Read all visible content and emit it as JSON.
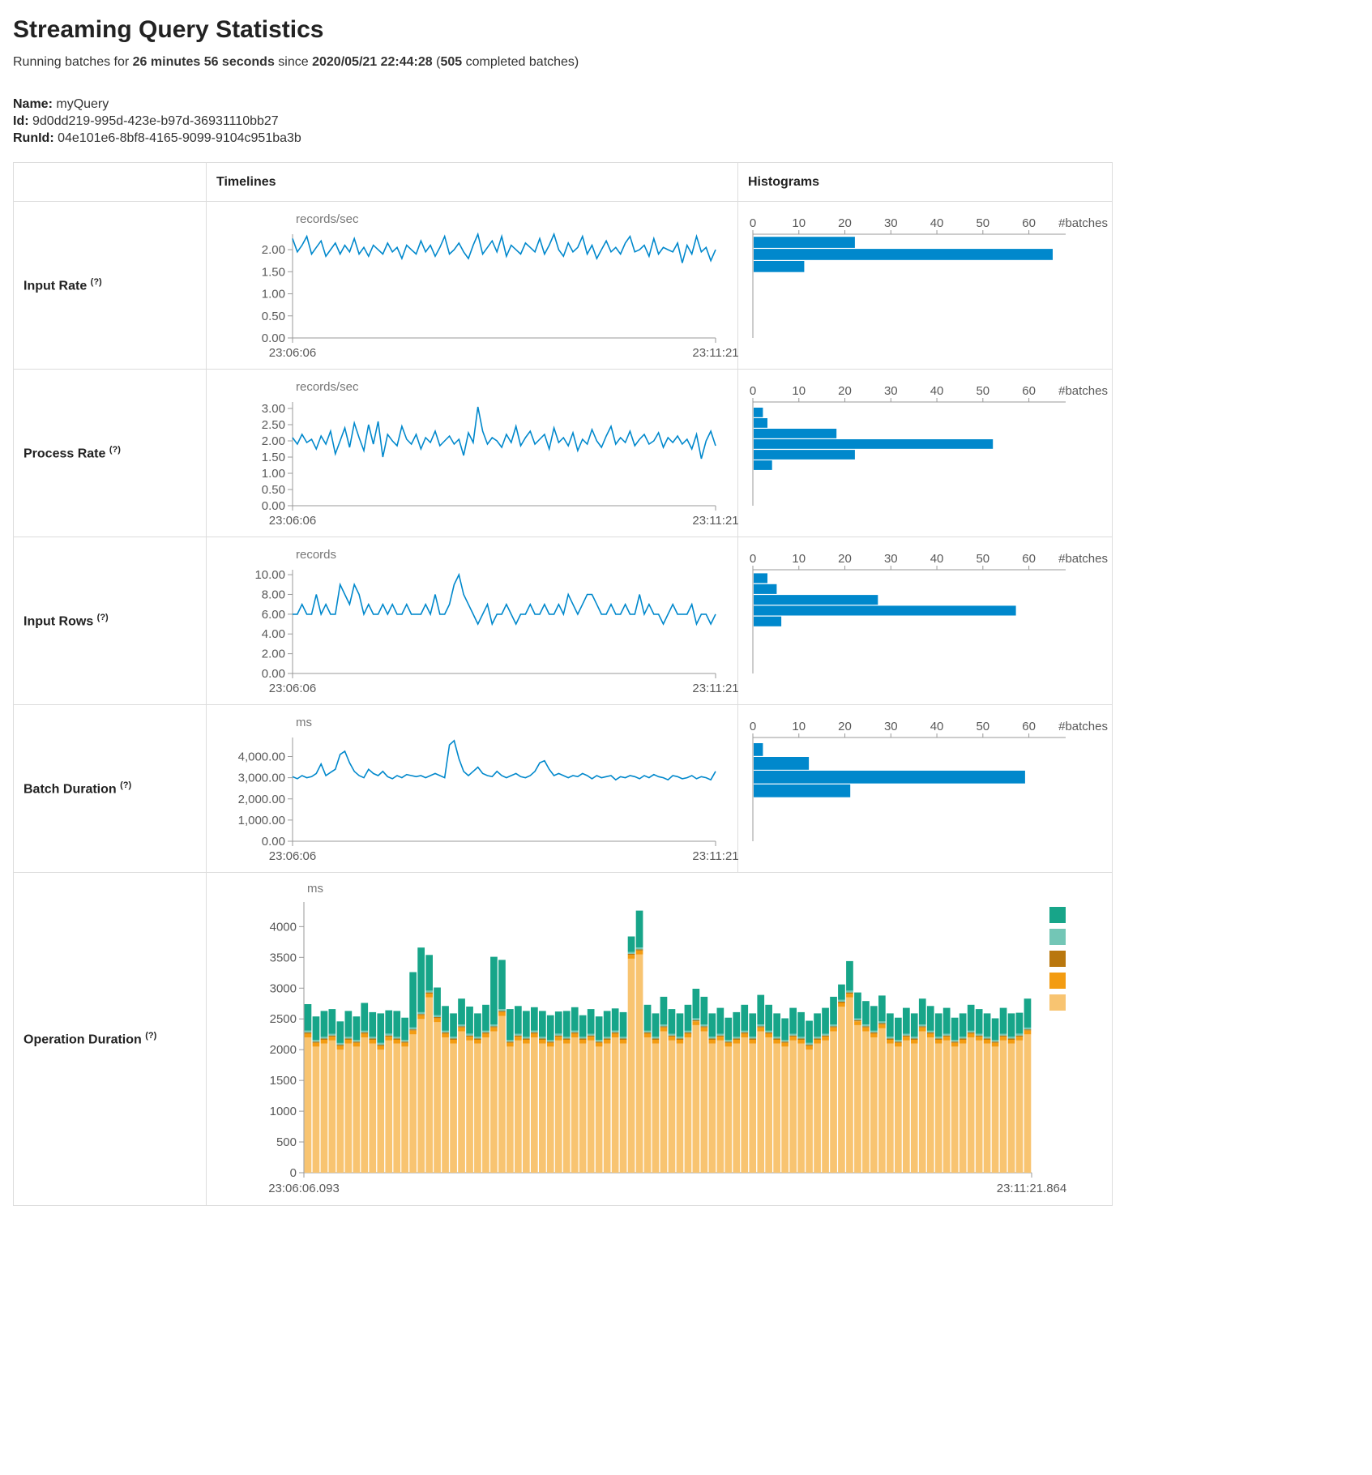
{
  "header": {
    "title": "Streaming Query Statistics",
    "running_prefix": "Running batches for",
    "duration": "26 minutes 56 seconds",
    "since_word": "since",
    "start_time": "2020/05/21 22:44:28",
    "paren_open": "(",
    "batch_count": "505",
    "completed_suffix": "completed batches)"
  },
  "meta": {
    "name_label": "Name:",
    "name_value": "myQuery",
    "id_label": "Id:",
    "id_value": "9d0dd219-995d-423e-b97d-36931110bb27",
    "runid_label": "RunId:",
    "runid_value": "04e101e6-8bf8-4165-9099-9104c951ba3b"
  },
  "table": {
    "col_timelines": "Timelines",
    "col_histograms": "Histograms",
    "rows": [
      {
        "label": "Input Rate",
        "help": "(?)"
      },
      {
        "label": "Process Rate",
        "help": "(?)"
      },
      {
        "label": "Input Rows",
        "help": "(?)"
      },
      {
        "label": "Batch Duration",
        "help": "(?)"
      },
      {
        "label": "Operation Duration",
        "help": "(?)"
      }
    ]
  },
  "palette": {
    "line": "#0088cc",
    "hist": "#0088cc",
    "axis": "#999999",
    "tick_text": "#595959",
    "unit_text": "#777777"
  },
  "chart_data": [
    {
      "id": "input-rate",
      "type": "line",
      "title": "Input Rate",
      "unit": "records/sec",
      "x_start": "23:06:06",
      "x_end": "23:11:21",
      "ylim": [
        0,
        2.35
      ],
      "yticks": [
        0,
        0.5,
        1,
        1.5,
        2
      ],
      "ytick_labels": [
        "0.00",
        "0.50",
        "1.00",
        "1.50",
        "2.00"
      ],
      "values": [
        2.25,
        1.95,
        2.1,
        2.3,
        1.9,
        2.05,
        2.2,
        1.85,
        2.0,
        2.15,
        1.9,
        2.1,
        1.95,
        2.25,
        1.9,
        2.05,
        1.85,
        2.1,
        2.0,
        1.9,
        2.15,
        1.95,
        2.05,
        1.8,
        2.1,
        2.0,
        1.9,
        2.2,
        1.95,
        2.1,
        1.85,
        2.05,
        2.3,
        1.9,
        2.0,
        2.15,
        1.95,
        1.8,
        2.1,
        2.35,
        1.9,
        2.05,
        2.2,
        1.95,
        2.3,
        1.85,
        2.1,
        2.0,
        1.9,
        2.15,
        2.05,
        1.95,
        2.25,
        1.9,
        2.1,
        2.35,
        2.0,
        1.85,
        2.15,
        1.95,
        2.05,
        2.3,
        1.9,
        2.1,
        1.8,
        2.0,
        2.2,
        1.95,
        2.05,
        1.9,
        2.15,
        2.3,
        1.95,
        2.0,
        2.1,
        1.85,
        2.25,
        1.9,
        2.05,
        2.0,
        1.95,
        2.15,
        1.7,
        2.1,
        1.9,
        2.3,
        1.95,
        2.05,
        1.75,
        2.0
      ],
      "histogram": {
        "xlabel": "#batches",
        "xticks": [
          0,
          10,
          20,
          30,
          40,
          50,
          60
        ],
        "xtick_labels": [
          "0",
          "10",
          "20",
          "30",
          "40",
          "50",
          "60"
        ],
        "xlim": [
          0,
          68
        ],
        "counts": [
          22,
          65,
          11
        ],
        "band": [
          0.02,
          0.37
        ]
      }
    },
    {
      "id": "process-rate",
      "type": "line",
      "title": "Process Rate",
      "unit": "records/sec",
      "x_start": "23:06:06",
      "x_end": "23:11:21",
      "ylim": [
        0,
        3.2
      ],
      "yticks": [
        0,
        0.5,
        1,
        1.5,
        2,
        2.5,
        3
      ],
      "ytick_labels": [
        "0.00",
        "0.50",
        "1.00",
        "1.50",
        "2.00",
        "2.50",
        "3.00"
      ],
      "values": [
        2.1,
        1.9,
        2.2,
        1.95,
        2.05,
        1.75,
        2.15,
        1.9,
        2.3,
        1.6,
        2.0,
        2.4,
        1.8,
        2.55,
        2.1,
        1.7,
        2.5,
        1.9,
        2.6,
        1.5,
        2.2,
        2.0,
        1.85,
        2.45,
        2.05,
        1.9,
        2.2,
        1.75,
        2.1,
        1.95,
        2.3,
        1.85,
        2.0,
        2.15,
        1.9,
        2.05,
        1.55,
        2.25,
        1.95,
        3.05,
        2.3,
        1.9,
        2.1,
        2.0,
        1.8,
        2.2,
        1.95,
        2.45,
        1.85,
        2.1,
        2.3,
        1.9,
        2.05,
        2.2,
        1.75,
        2.4,
        1.95,
        2.1,
        1.85,
        2.25,
        1.7,
        2.05,
        1.9,
        2.35,
        2.0,
        1.8,
        2.15,
        2.45,
        1.9,
        2.1,
        1.95,
        2.3,
        1.85,
        2.05,
        2.2,
        1.9,
        2.0,
        2.25,
        1.8,
        2.1,
        1.95,
        2.15,
        1.9,
        2.05,
        1.75,
        2.2,
        1.45,
        2.0,
        2.3,
        1.85
      ],
      "histogram": {
        "xlabel": "#batches",
        "xticks": [
          0,
          10,
          20,
          30,
          40,
          50,
          60
        ],
        "xtick_labels": [
          "0",
          "10",
          "20",
          "30",
          "40",
          "50",
          "60"
        ],
        "xlim": [
          0,
          68
        ],
        "counts": [
          2,
          3,
          18,
          52,
          22,
          4
        ],
        "band": [
          0.05,
          0.66
        ]
      }
    },
    {
      "id": "input-rows",
      "type": "line",
      "title": "Input Rows",
      "unit": "records",
      "x_start": "23:06:06",
      "x_end": "23:11:21",
      "ylim": [
        0,
        10.5
      ],
      "yticks": [
        0,
        2,
        4,
        6,
        8,
        10
      ],
      "ytick_labels": [
        "0.00",
        "2.00",
        "4.00",
        "6.00",
        "8.00",
        "10.00"
      ],
      "values": [
        6,
        6,
        7,
        6,
        6,
        8,
        6,
        7,
        6,
        6,
        9,
        8,
        7,
        9,
        8,
        6,
        7,
        6,
        6,
        7,
        6,
        7,
        6,
        6,
        7,
        6,
        6,
        6,
        7,
        6,
        8,
        6,
        6,
        7,
        9,
        10,
        8,
        7,
        6,
        5,
        6,
        7,
        5,
        6,
        6,
        7,
        6,
        5,
        6,
        6,
        7,
        6,
        6,
        7,
        6,
        6,
        7,
        6,
        8,
        7,
        6,
        7,
        8,
        8,
        7,
        6,
        6,
        7,
        6,
        6,
        7,
        6,
        6,
        8,
        6,
        7,
        6,
        6,
        5,
        6,
        7,
        6,
        6,
        6,
        7,
        5,
        6,
        6,
        5,
        6
      ],
      "histogram": {
        "xlabel": "#batches",
        "xticks": [
          0,
          10,
          20,
          30,
          40,
          50,
          60
        ],
        "xtick_labels": [
          "0",
          "10",
          "20",
          "30",
          "40",
          "50",
          "60"
        ],
        "xlim": [
          0,
          68
        ],
        "counts": [
          3,
          5,
          27,
          57,
          6
        ],
        "band": [
          0.03,
          0.55
        ]
      }
    },
    {
      "id": "batch-duration",
      "type": "line",
      "title": "Batch Duration",
      "unit": "ms",
      "x_start": "23:06:06",
      "x_end": "23:11:21",
      "ylim": [
        0,
        4900
      ],
      "yticks": [
        0,
        1000,
        2000,
        3000,
        4000
      ],
      "ytick_labels": [
        "0.00",
        "1,000.00",
        "2,000.00",
        "3,000.00",
        "4,000.00"
      ],
      "values": [
        3050,
        2950,
        3100,
        3000,
        3050,
        3200,
        3650,
        3100,
        3250,
        3400,
        4100,
        4250,
        3700,
        3300,
        3100,
        3000,
        3400,
        3200,
        3100,
        3300,
        3050,
        2950,
        3100,
        3000,
        3150,
        3100,
        3050,
        3100,
        3000,
        3100,
        3200,
        3100,
        3000,
        4550,
        4750,
        3900,
        3300,
        3100,
        3300,
        3500,
        3200,
        3100,
        3050,
        3300,
        3100,
        3000,
        3100,
        3200,
        3050,
        3000,
        3100,
        3300,
        3700,
        3800,
        3400,
        3100,
        3200,
        3100,
        3000,
        3100,
        3050,
        3200,
        3100,
        2950,
        3100,
        3000,
        3050,
        3100,
        2900,
        3050,
        3000,
        3100,
        3050,
        2950,
        3100,
        3000,
        3150,
        3050,
        3000,
        2900,
        3100,
        3050,
        2950,
        3000,
        3100,
        2950,
        3050,
        3000,
        2900,
        3300
      ],
      "histogram": {
        "xlabel": "#batches",
        "xticks": [
          0,
          10,
          20,
          30,
          40,
          50,
          60
        ],
        "xtick_labels": [
          "0",
          "10",
          "20",
          "30",
          "40",
          "50",
          "60"
        ],
        "xlim": [
          0,
          68
        ],
        "counts": [
          2,
          12,
          59,
          21
        ],
        "band": [
          0.05,
          0.58
        ]
      }
    },
    {
      "id": "operation-duration",
      "type": "stacked-bar",
      "title": "Operation Duration",
      "unit": "ms",
      "x_start": "23:06:06.093",
      "x_end": "23:11:21.864",
      "ylim": [
        0,
        4400
      ],
      "yticks": [
        0,
        500,
        1000,
        1500,
        2000,
        2500,
        3000,
        3500,
        4000
      ],
      "ytick_labels": [
        "0",
        "500",
        "1000",
        "1500",
        "2000",
        "2500",
        "3000",
        "3500",
        "4000"
      ],
      "series": [
        {
          "name": "tan",
          "color": "#F8C471",
          "values": [
            2200,
            2050,
            2100,
            2150,
            2000,
            2100,
            2050,
            2200,
            2100,
            2000,
            2150,
            2100,
            2050,
            2250,
            2500,
            2850,
            2450,
            2200,
            2100,
            2300,
            2150,
            2100,
            2200,
            2300,
            2550,
            2050,
            2150,
            2100,
            2200,
            2100,
            2050,
            2150,
            2100,
            2200,
            2100,
            2150,
            2050,
            2100,
            2200,
            2100,
            3480,
            3550,
            2200,
            2100,
            2300,
            2150,
            2100,
            2200,
            2400,
            2300,
            2100,
            2150,
            2050,
            2100,
            2200,
            2100,
            2300,
            2200,
            2100,
            2050,
            2150,
            2100,
            2000,
            2100,
            2150,
            2300,
            2700,
            2850,
            2400,
            2300,
            2200,
            2350,
            2100,
            2050,
            2150,
            2100,
            2300,
            2200,
            2100,
            2150,
            2050,
            2100,
            2200,
            2150,
            2100,
            2050,
            2150,
            2100,
            2150,
            2250
          ]
        },
        {
          "name": "orange",
          "color": "#F39C12",
          "constant": 60
        },
        {
          "name": "brown",
          "color": "#B9770E",
          "constant": 20
        },
        {
          "name": "light-green",
          "color": "#73C6B6",
          "constant": 30
        },
        {
          "name": "green",
          "color": "#17A589",
          "values": [
            430,
            380,
            420,
            400,
            350,
            420,
            380,
            450,
            400,
            480,
            380,
            420,
            360,
            900,
            1050,
            580,
            450,
            400,
            380,
            420,
            440,
            380,
            420,
            1100,
            800,
            500,
            450,
            420,
            380,
            420,
            400,
            360,
            420,
            380,
            350,
            400,
            380,
            420,
            360,
            400,
            250,
            600,
            420,
            380,
            450,
            400,
            380,
            420,
            480,
            450,
            380,
            420,
            360,
            400,
            420,
            380,
            480,
            420,
            380,
            350,
            420,
            400,
            360,
            380,
            420,
            450,
            250,
            480,
            420,
            380,
            400,
            420,
            380,
            360,
            420,
            380,
            420,
            400,
            380,
            420,
            360,
            380,
            420,
            400,
            380,
            350,
            420,
            380,
            340,
            470
          ]
        }
      ],
      "legend_colors": [
        "#17A589",
        "#73C6B6",
        "#B9770E",
        "#F39C12",
        "#F8C471"
      ]
    }
  ]
}
